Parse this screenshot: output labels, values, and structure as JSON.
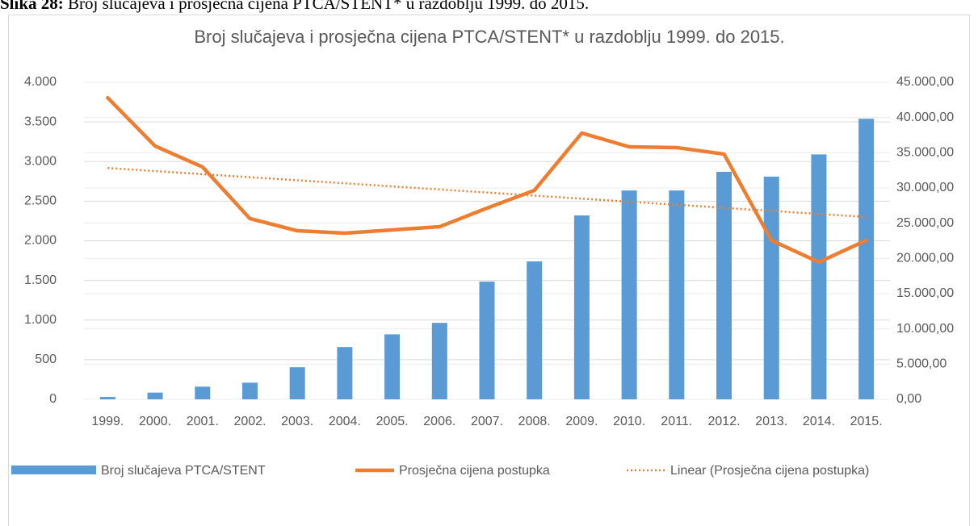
{
  "caption": {
    "label": "Slika 28:",
    "text": "Broj slučajeva i prosječna cijena PTCA/STENT* u razdoblju 1999. do 2015."
  },
  "chart_data": {
    "type": "bar_line",
    "title": "Broj slučajeva i prosječna cijena PTCA/STENT* u razdoblju 1999. do 2015.",
    "categories": [
      "1999.",
      "2000.",
      "2001.",
      "2002.",
      "2003.",
      "2004.",
      "2005.",
      "2006.",
      "2007.",
      "2008.",
      "2009.",
      "2010.",
      "2011.",
      "2012.",
      "2013.",
      "2014.",
      "2015."
    ],
    "series": [
      {
        "name": "Broj slučajeva PTCA/STENT",
        "type": "bar",
        "color": "#5b9bd5",
        "axis": "y",
        "values": [
          30,
          85,
          160,
          210,
          405,
          660,
          820,
          965,
          1485,
          1740,
          2320,
          2635,
          2635,
          2870,
          2810,
          3090,
          3540
        ]
      },
      {
        "name": "Prosječna cijena postupka",
        "type": "line",
        "color": "#ed7d31",
        "axis": "y2",
        "values": [
          42800,
          35950,
          32980,
          25650,
          23930,
          23590,
          24050,
          24500,
          27140,
          29660,
          37790,
          35840,
          35730,
          34810,
          22560,
          19470,
          22560
        ],
        "trendline": {
          "name": "Linear (Prosječna cijena postupka)",
          "kind": "linear",
          "style": "dotted"
        }
      }
    ],
    "ylim": [
      0,
      4000
    ],
    "yticks": [
      0,
      500,
      {
        "value": 1000,
        "label": "1.000"
      },
      {
        "value": 1500,
        "label": "1.500"
      },
      {
        "value": 2000,
        "label": "2.000"
      },
      {
        "value": 2500,
        "label": "2.500"
      },
      {
        "value": 3000,
        "label": "3.000"
      },
      {
        "value": 3500,
        "label": "3.500"
      },
      {
        "value": 4000,
        "label": "4.000"
      }
    ],
    "y2lim": [
      0,
      45000
    ],
    "y2ticks": [
      {
        "value": 0,
        "label": "0,00"
      },
      {
        "value": 5000,
        "label": "5.000,00"
      },
      {
        "value": 10000,
        "label": "10.000,00"
      },
      {
        "value": 15000,
        "label": "15.000,00"
      },
      {
        "value": 20000,
        "label": "20.000,00"
      },
      {
        "value": 25000,
        "label": "25.000,00"
      },
      {
        "value": 30000,
        "label": "30.000,00"
      },
      {
        "value": 35000,
        "label": "35.000,00"
      },
      {
        "value": 40000,
        "label": "40.000,00"
      },
      {
        "value": 45000,
        "label": "45.000,00"
      }
    ],
    "grid": true,
    "legend": "bottom"
  }
}
